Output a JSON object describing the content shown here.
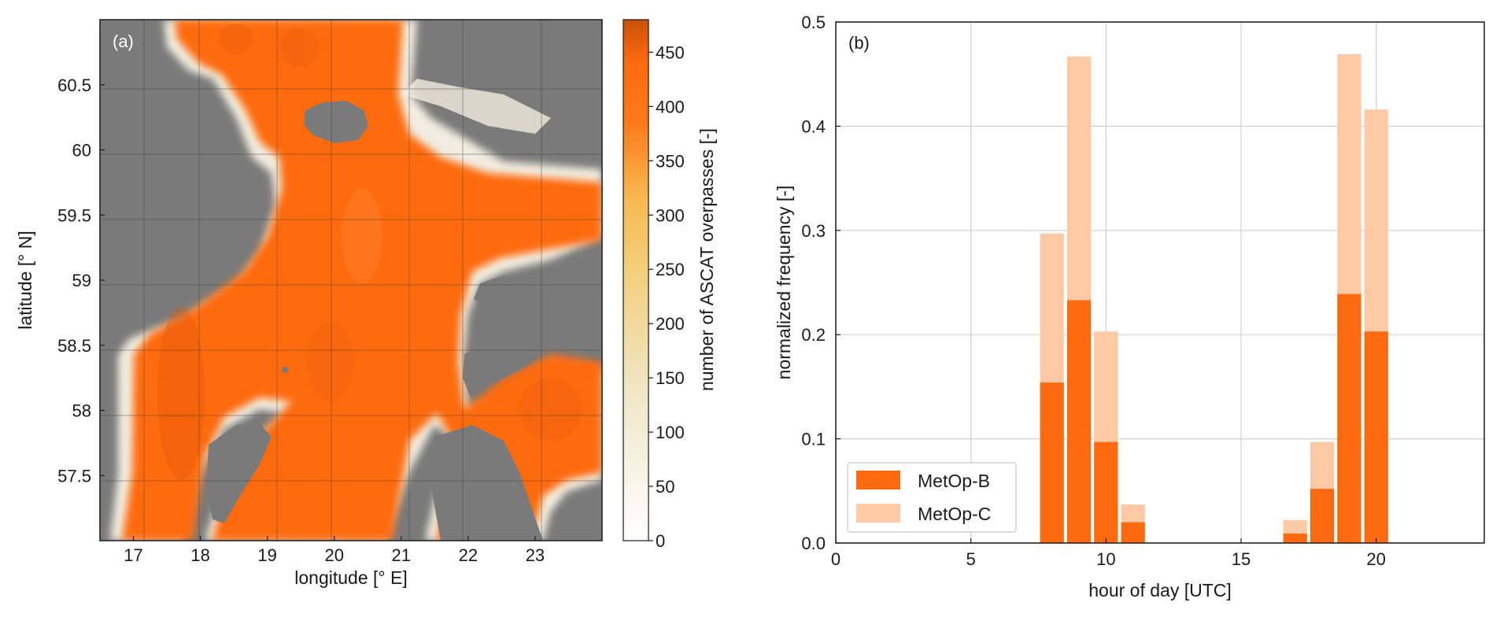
{
  "panels": {
    "a": {
      "label": "(a)",
      "xlabel": "longitude [° E]",
      "ylabel": "latitude [° N]",
      "colorbar_label": "number of ASCAT overpasses [-]",
      "x_ticks": [
        "17",
        "18",
        "19",
        "20",
        "21",
        "22",
        "23"
      ],
      "y_ticks": [
        "60.5",
        "60",
        "59.5",
        "59",
        "58.5",
        "58",
        "57.5"
      ],
      "colorbar_ticks": [
        "0",
        "50",
        "100",
        "150",
        "200",
        "250",
        "300",
        "350",
        "400",
        "450"
      ],
      "colors": {
        "land": "#7a7a7a",
        "sea_high": "#ff6a10",
        "sea_low": "#ffffff",
        "colorbar_mid": "#f7b850",
        "colorbar_top": "#c9520a"
      }
    },
    "b": {
      "label": "(b)",
      "xlabel": "hour of day [UTC]",
      "ylabel": "normalized frequency  [-]",
      "legend": [
        "MetOp-B",
        "MetOp-C"
      ],
      "colors": {
        "metop_b": "#ff6a10",
        "metop_c": "#ffc9a3"
      }
    }
  },
  "chart_data": [
    {
      "type": "heatmap",
      "xlim": [
        16.5,
        24
      ],
      "ylim": [
        57,
        61
      ],
      "colorbar_range": [
        0,
        480
      ],
      "xlabel": "longitude [° E]",
      "ylabel": "latitude [° N]",
      "colorbar_label": "number of ASCAT overpasses [-]"
    },
    {
      "type": "bar",
      "xlabel": "hour of day [UTC]",
      "ylabel": "normalized frequency  [-]",
      "xlim": [
        0,
        24
      ],
      "ylim": [
        0,
        0.5
      ],
      "x_ticks": [
        0,
        5,
        10,
        15,
        20
      ],
      "y_ticks": [
        0.0,
        0.1,
        0.2,
        0.3,
        0.4,
        0.5
      ],
      "grid": true,
      "legend_position": "lower-left",
      "series": [
        {
          "name": "MetOp-B",
          "x": [
            8,
            9,
            10,
            11,
            17,
            18,
            19,
            20
          ],
          "values": [
            0.154,
            0.233,
            0.097,
            0.02,
            0.009,
            0.052,
            0.239,
            0.203
          ]
        },
        {
          "name": "MetOp-C",
          "x": [
            8,
            9,
            10,
            11,
            17,
            18,
            19,
            20
          ],
          "values": [
            0.297,
            0.467,
            0.203,
            0.037,
            0.022,
            0.097,
            0.469,
            0.416
          ]
        }
      ]
    }
  ]
}
